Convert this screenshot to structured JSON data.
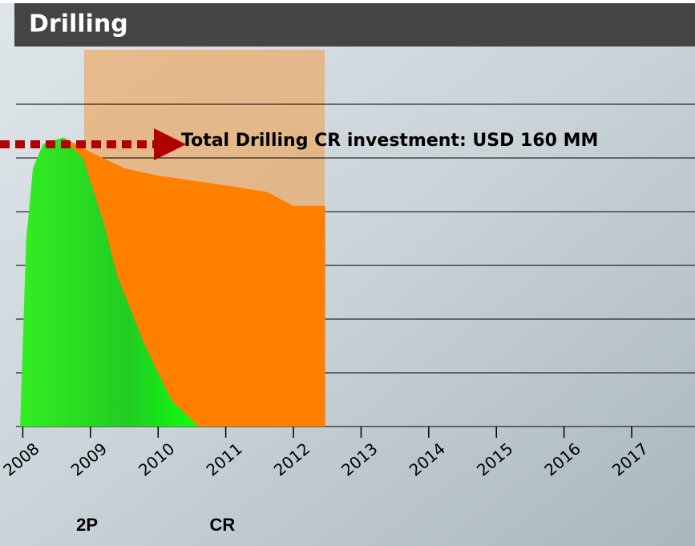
{
  "chart_data": {
    "type": "area",
    "title": "Drilling",
    "annotation": "Total Drilling CR investment: USD 160 MM",
    "xlim": [
      2007.9,
      2018
    ],
    "ylim": [
      0,
      7
    ],
    "xticks": [
      2008,
      2009,
      2010,
      2011,
      2012,
      2013,
      2014,
      2015,
      2016,
      2017
    ],
    "series": [
      {
        "name": "CR",
        "color": "#ff7f00",
        "x": [
          2008.6,
          2009,
          2009.5,
          2010,
          2011,
          2011.6,
          2012,
          2012.47
        ],
        "values": [
          5.37,
          5.1,
          4.8,
          4.66,
          4.48,
          4.36,
          4.1,
          4.1
        ]
      },
      {
        "name": "2P",
        "color": "#22dd11",
        "x": [
          2007.96,
          2008.05,
          2008.15,
          2008.3,
          2008.6,
          2008.9,
          2009.2,
          2009.4,
          2009.8,
          2010.2,
          2010.6
        ],
        "values": [
          0,
          3.46,
          4.8,
          5.25,
          5.37,
          4.96,
          3.76,
          2.79,
          1.52,
          0.48,
          0
        ]
      }
    ]
  }
}
